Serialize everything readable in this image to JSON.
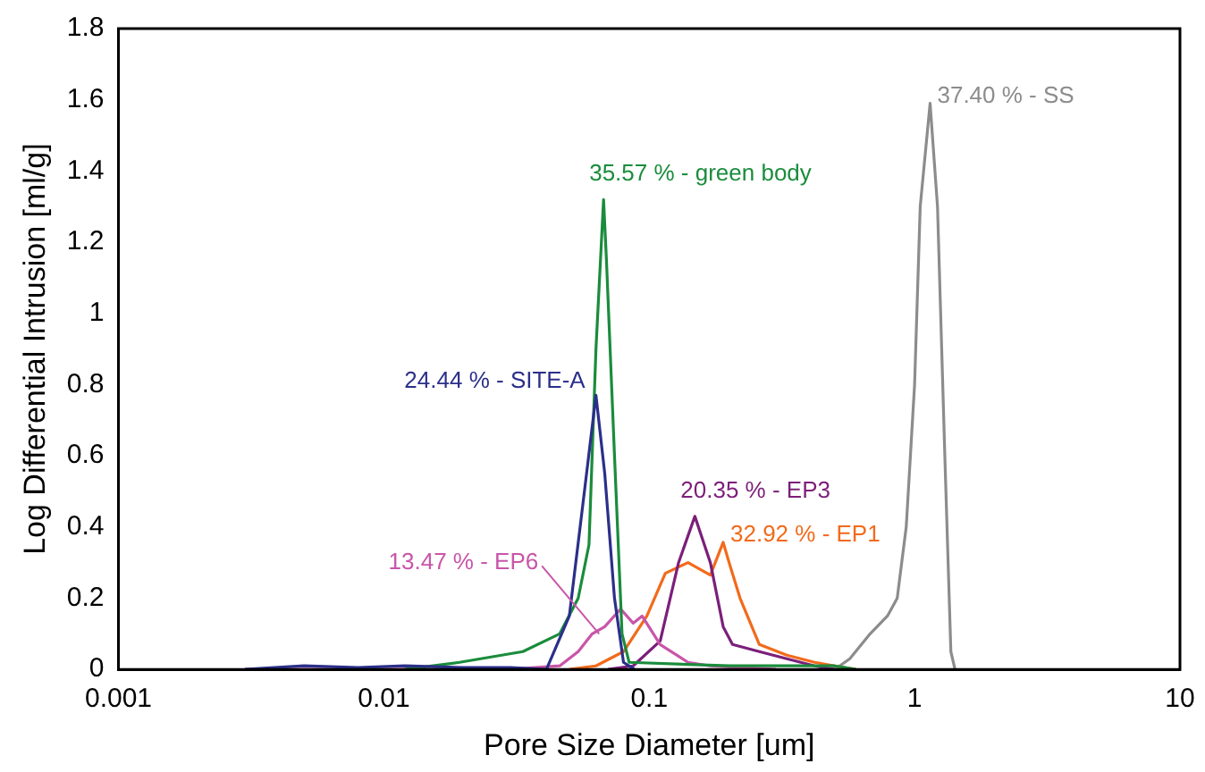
{
  "chart_data": {
    "type": "line",
    "xlabel": "Pore Size Diameter [um]",
    "ylabel": "Log Differential Intrusion [ml/g]",
    "log": "x",
    "xlim": [
      0.001,
      10
    ],
    "xticks": [
      0.001,
      0.01,
      0.1,
      1,
      10
    ],
    "ylim": [
      0,
      1.8
    ],
    "yticks": [
      0,
      0.2,
      0.4,
      0.6,
      0.8,
      1,
      1.2,
      1.4,
      1.6,
      1.8
    ],
    "grid": false,
    "legend": false,
    "marker": "none",
    "line_style": "solid",
    "series": [
      {
        "name": "24.44 % - SITE-A",
        "color": "#2b2f8a",
        "x": [
          0.003,
          0.005,
          0.008,
          0.012,
          0.02,
          0.03,
          0.041,
          0.05,
          0.057,
          0.063,
          0.068,
          0.074,
          0.08,
          0.088
        ],
        "values": [
          0,
          0.01,
          0.005,
          0.01,
          0.005,
          0.005,
          0,
          0.15,
          0.5,
          0.77,
          0.55,
          0.2,
          0.02,
          0
        ]
      },
      {
        "name": "35.57 % - green body",
        "color": "#1a8c3c",
        "x": [
          0.012,
          0.0193,
          0.0334,
          0.046,
          0.054,
          0.0593,
          0.063,
          0.0673,
          0.069,
          0.074,
          0.079,
          0.084,
          0.2,
          0.5,
          0.6
        ],
        "values": [
          0,
          0.02,
          0.05,
          0.1,
          0.2,
          0.35,
          0.9,
          1.32,
          1.15,
          0.6,
          0.1,
          0.02,
          0.01,
          0.01,
          0
        ]
      },
      {
        "name": "13.47 % - EP6",
        "color": "#c855a8",
        "x": [
          0.003,
          0.03,
          0.046,
          0.054,
          0.061,
          0.068,
          0.078,
          0.087,
          0.094,
          0.11,
          0.14,
          0.17,
          0.3
        ],
        "values": [
          0,
          0,
          0.01,
          0.05,
          0.1,
          0.12,
          0.17,
          0.13,
          0.15,
          0.07,
          0.02,
          0.01,
          0
        ]
      },
      {
        "name": "20.35 % - EP3",
        "color": "#7b1f7a",
        "x": [
          0.07,
          0.087,
          0.11,
          0.129,
          0.1486,
          0.17,
          0.19,
          0.206,
          0.26,
          0.33,
          0.42,
          0.5
        ],
        "values": [
          0,
          0.01,
          0.08,
          0.3,
          0.43,
          0.3,
          0.12,
          0.07,
          0.05,
          0.03,
          0.01,
          0
        ]
      },
      {
        "name": "32.92 % - EP1",
        "color": "#f26a1b",
        "x": [
          0.05,
          0.063,
          0.08,
          0.098,
          0.115,
          0.14,
          0.17,
          0.19,
          0.2,
          0.22,
          0.26,
          0.33,
          0.42,
          0.5,
          0.6
        ],
        "values": [
          0,
          0.01,
          0.05,
          0.15,
          0.27,
          0.3,
          0.265,
          0.357,
          0.3,
          0.2,
          0.07,
          0.04,
          0.02,
          0.01,
          0
        ]
      },
      {
        "name": "37.40 % - SS",
        "color": "#8c8c8c",
        "x": [
          0.5,
          0.57,
          0.68,
          0.79,
          0.86,
          0.93,
          1.0,
          1.05,
          1.144,
          1.22,
          1.3,
          1.37,
          1.42
        ],
        "values": [
          0,
          0.03,
          0.1,
          0.15,
          0.2,
          0.4,
          0.8,
          1.3,
          1.59,
          1.3,
          0.6,
          0.05,
          0
        ]
      }
    ]
  }
}
